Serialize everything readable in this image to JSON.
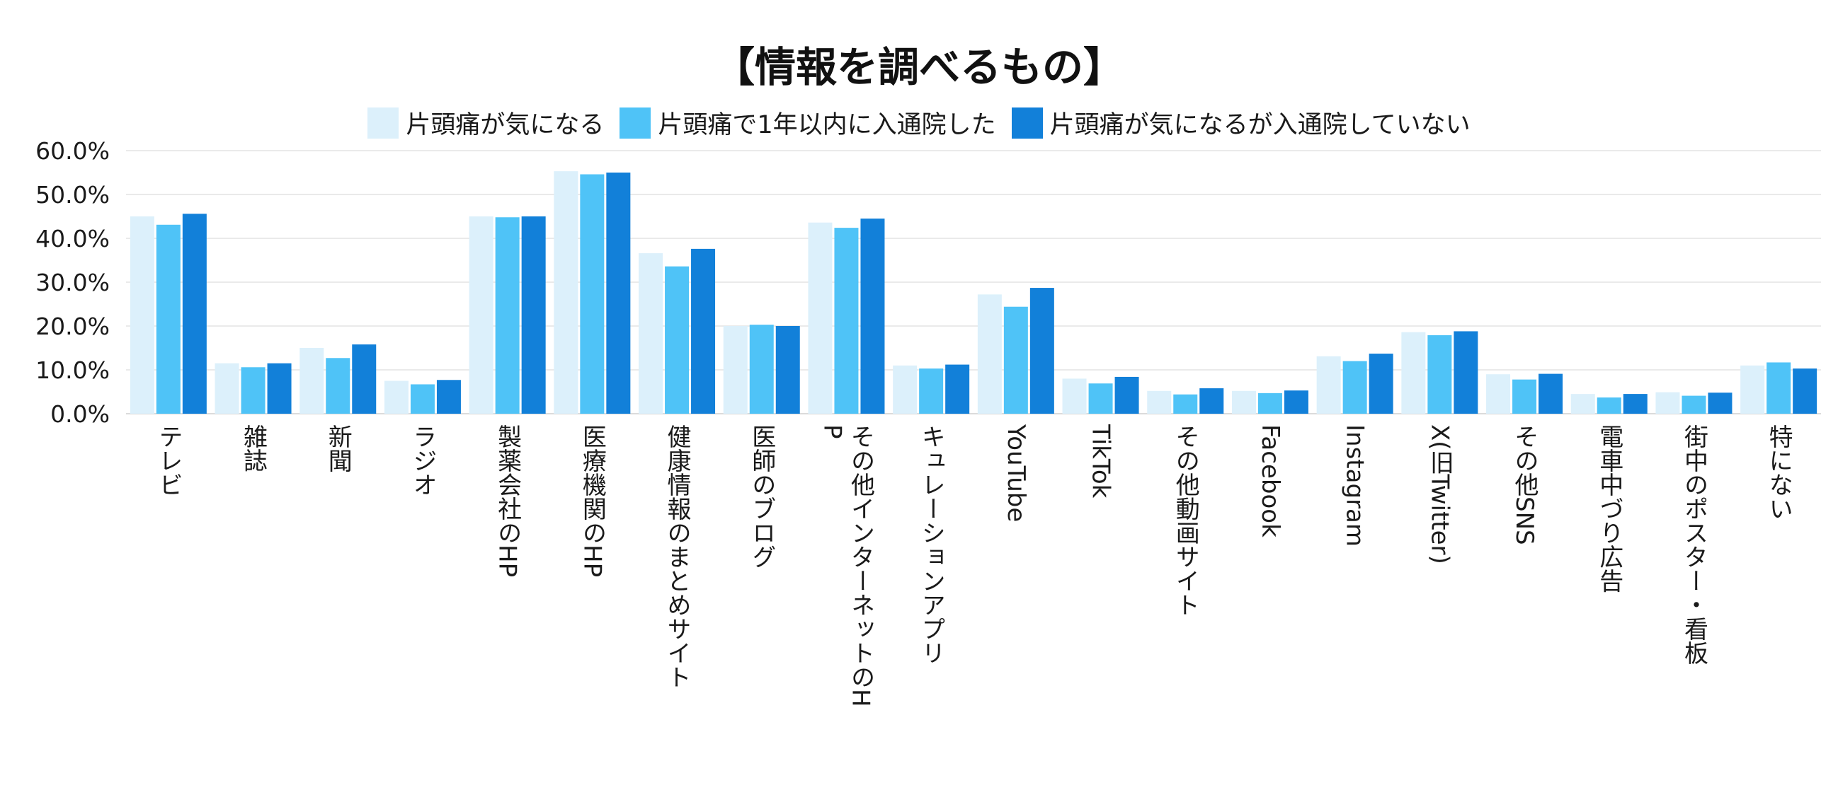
{
  "chart_data": {
    "type": "bar",
    "title": "【情報を調べるもの】",
    "xlabel": "",
    "ylabel": "",
    "ylim": [
      0,
      60
    ],
    "yticks": [
      "0.0%",
      "10.0%",
      "20.0%",
      "30.0%",
      "40.0%",
      "50.0%",
      "60.0%"
    ],
    "grid": true,
    "legend_position": "top-center",
    "categories": [
      "テレビ",
      "雑誌",
      "新聞",
      "ラジオ",
      "製薬会社のHP",
      "医療機関のHP",
      "健康情報のまとめサイト",
      "医師のブログ",
      "その他インターネットのHP",
      "キュレーションアプリ",
      "YouTube",
      "TikTok",
      "その他動画サイト",
      "Facebook",
      "Instagram",
      "X(旧Twitter)",
      "その他SNS",
      "電車中づり広告",
      "街中のポスター・看板",
      "特にない"
    ],
    "series": [
      {
        "name": "片頭痛が気になる",
        "color": "#dcf0fb",
        "values": [
          45.0,
          11.5,
          15.0,
          7.5,
          45.0,
          55.3,
          36.6,
          20.0,
          43.6,
          11.0,
          27.2,
          8.0,
          5.2,
          5.2,
          13.1,
          18.6,
          9.0,
          4.5,
          4.9,
          11.0
        ]
      },
      {
        "name": "片頭痛で1年以内に入通院した",
        "color": "#4fc3f7",
        "values": [
          43.1,
          10.6,
          12.7,
          6.7,
          44.8,
          54.6,
          33.6,
          20.3,
          42.4,
          10.3,
          24.4,
          6.9,
          4.4,
          4.7,
          12.0,
          17.9,
          7.8,
          3.7,
          4.1,
          11.7
        ]
      },
      {
        "name": "片頭痛が気になるが入通院していない",
        "color": "#1280d9",
        "values": [
          45.6,
          11.5,
          15.8,
          7.7,
          45.0,
          55.0,
          37.6,
          20.0,
          44.5,
          11.2,
          28.7,
          8.4,
          5.8,
          5.3,
          13.7,
          18.8,
          9.1,
          4.5,
          4.8,
          10.3
        ]
      }
    ]
  }
}
